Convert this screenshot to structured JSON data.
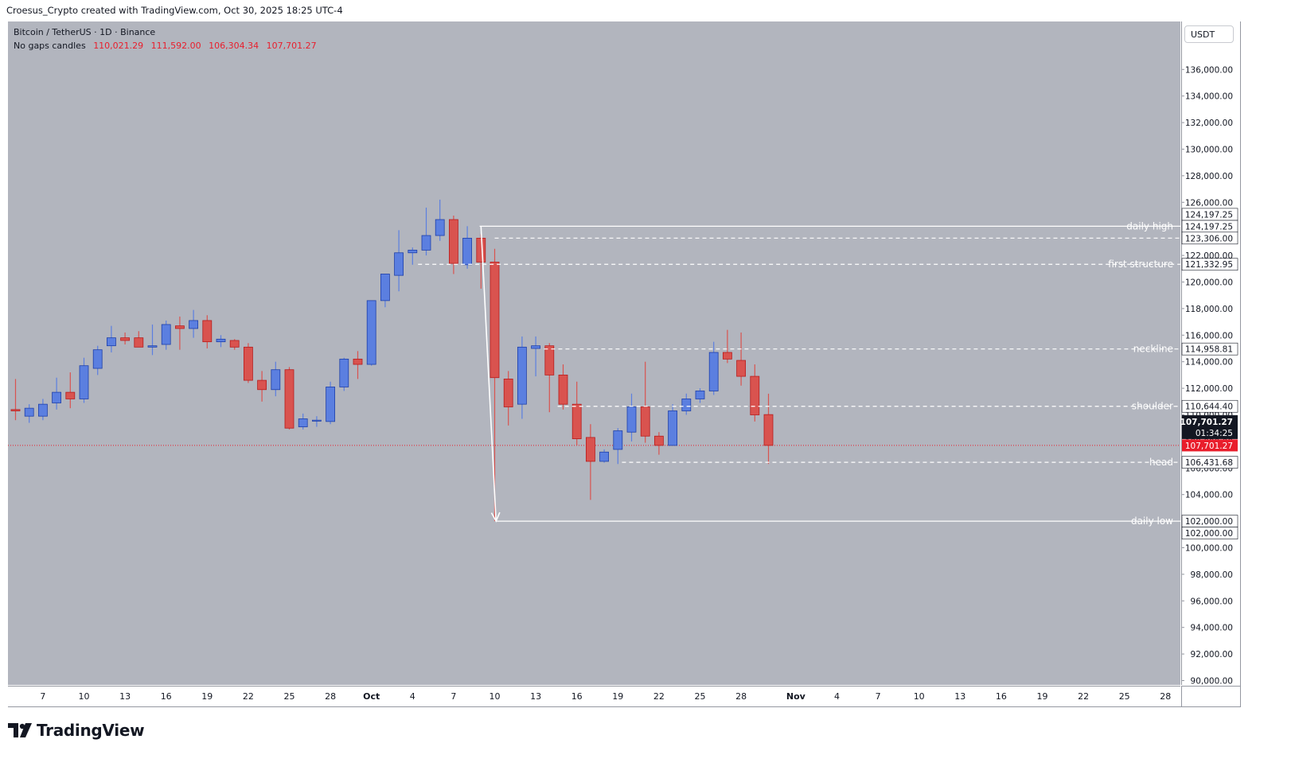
{
  "header": {
    "attribution": "Croesus_Crypto created with TradingView.com, Oct 30, 2025 18:25 UTC-4"
  },
  "legend": {
    "title": "Bitcoin / TetherUS · 1D · Binance",
    "candle_mode": "No gaps candles",
    "open": "110,021.29",
    "high": "111,592.00",
    "low": "106,304.34",
    "close": "107,701.27"
  },
  "price_axis": {
    "currency": "USDT"
  },
  "branding": {
    "logo_text": "TradingView"
  },
  "colors": {
    "up": "#5b7fe0",
    "up_border": "#1e3fa8",
    "down": "#d9534f",
    "down_border": "#b71c1c",
    "background": "#b2b5be"
  },
  "chart_data": {
    "type": "candlestick",
    "title": "",
    "ylim": [
      89000,
      138000
    ],
    "y_ticks": [
      90000,
      92000,
      94000,
      96000,
      98000,
      100000,
      102000,
      104000,
      106000,
      108000,
      110000,
      112000,
      114000,
      116000,
      118000,
      120000,
      122000,
      124000,
      126000,
      128000,
      130000,
      132000,
      134000,
      136000
    ],
    "y_tick_labels": [
      "90,000.00",
      "92,000.00",
      "94,000.00",
      "96,000.00",
      "98,000.00",
      "100,000.00",
      "102,000.00",
      "104,000.00",
      "106,000.00",
      "108,000.00",
      "110,000.00",
      "112,000.00",
      "114,000.00",
      "116,000.00",
      "118,000.00",
      "120,000.00",
      "122,000.00",
      "124,000.00",
      "126,000.00",
      "128,000.00",
      "130,000.00",
      "132,000.00",
      "134,000.00",
      "136,000.00"
    ],
    "x_tick_labels": [
      {
        "day": 2,
        "label": "7"
      },
      {
        "day": 5,
        "label": "10"
      },
      {
        "day": 8,
        "label": "13"
      },
      {
        "day": 11,
        "label": "16"
      },
      {
        "day": 14,
        "label": "19"
      },
      {
        "day": 17,
        "label": "22"
      },
      {
        "day": 20,
        "label": "25"
      },
      {
        "day": 23,
        "label": "28"
      },
      {
        "day": 26,
        "label": "Oct"
      },
      {
        "day": 29,
        "label": "4"
      },
      {
        "day": 32,
        "label": "7"
      },
      {
        "day": 35,
        "label": "10"
      },
      {
        "day": 38,
        "label": "13"
      },
      {
        "day": 41,
        "label": "16"
      },
      {
        "day": 44,
        "label": "19"
      },
      {
        "day": 47,
        "label": "22"
      },
      {
        "day": 50,
        "label": "25"
      },
      {
        "day": 53,
        "label": "28"
      },
      {
        "day": 57,
        "label": "Nov"
      },
      {
        "day": 60,
        "label": "4"
      },
      {
        "day": 63,
        "label": "7"
      },
      {
        "day": 66,
        "label": "10"
      },
      {
        "day": 69,
        "label": "13"
      },
      {
        "day": 72,
        "label": "16"
      },
      {
        "day": 75,
        "label": "19"
      },
      {
        "day": 78,
        "label": "22"
      },
      {
        "day": 81,
        "label": "25"
      },
      {
        "day": 84,
        "label": "28"
      }
    ],
    "candles": [
      {
        "o": 110400,
        "h": 112700,
        "l": 109600,
        "c": 110300
      },
      {
        "o": 109900,
        "h": 110800,
        "l": 109400,
        "c": 110500
      },
      {
        "o": 109900,
        "h": 111200,
        "l": 109600,
        "c": 110800
      },
      {
        "o": 110900,
        "h": 112800,
        "l": 110400,
        "c": 111700
      },
      {
        "o": 111700,
        "h": 113200,
        "l": 110500,
        "c": 111200
      },
      {
        "o": 111200,
        "h": 114300,
        "l": 110900,
        "c": 113700
      },
      {
        "o": 113500,
        "h": 115200,
        "l": 113000,
        "c": 114900
      },
      {
        "o": 115200,
        "h": 116700,
        "l": 114700,
        "c": 115800
      },
      {
        "o": 115800,
        "h": 116200,
        "l": 115300,
        "c": 115600
      },
      {
        "o": 115800,
        "h": 116300,
        "l": 115100,
        "c": 115100
      },
      {
        "o": 115100,
        "h": 116800,
        "l": 114500,
        "c": 115200
      },
      {
        "o": 115300,
        "h": 117100,
        "l": 114900,
        "c": 116800
      },
      {
        "o": 116700,
        "h": 117400,
        "l": 114900,
        "c": 116500
      },
      {
        "o": 116500,
        "h": 117900,
        "l": 115800,
        "c": 117100
      },
      {
        "o": 117100,
        "h": 117500,
        "l": 115000,
        "c": 115500
      },
      {
        "o": 115500,
        "h": 116000,
        "l": 115100,
        "c": 115700
      },
      {
        "o": 115600,
        "h": 115700,
        "l": 114900,
        "c": 115100
      },
      {
        "o": 115100,
        "h": 115400,
        "l": 112400,
        "c": 112600
      },
      {
        "o": 112600,
        "h": 113300,
        "l": 111000,
        "c": 111900
      },
      {
        "o": 111900,
        "h": 114000,
        "l": 111400,
        "c": 113400
      },
      {
        "o": 113400,
        "h": 113600,
        "l": 108900,
        "c": 109000
      },
      {
        "o": 109100,
        "h": 110100,
        "l": 108900,
        "c": 109700
      },
      {
        "o": 109600,
        "h": 109900,
        "l": 109100,
        "c": 109600
      },
      {
        "o": 109500,
        "h": 112500,
        "l": 109300,
        "c": 112100
      },
      {
        "o": 112100,
        "h": 114300,
        "l": 111800,
        "c": 114200
      },
      {
        "o": 114200,
        "h": 114800,
        "l": 112700,
        "c": 113800
      },
      {
        "o": 113800,
        "h": 118600,
        "l": 113700,
        "c": 118600
      },
      {
        "o": 118600,
        "h": 120600,
        "l": 118100,
        "c": 120600
      },
      {
        "o": 120500,
        "h": 123900,
        "l": 119300,
        "c": 122200
      },
      {
        "o": 122200,
        "h": 122600,
        "l": 121300,
        "c": 122400
      },
      {
        "o": 122400,
        "h": 125600,
        "l": 122000,
        "c": 123500
      },
      {
        "o": 123500,
        "h": 126200,
        "l": 123100,
        "c": 124700
      },
      {
        "o": 124700,
        "h": 125000,
        "l": 120600,
        "c": 121400
      },
      {
        "o": 121300,
        "h": 124200,
        "l": 121000,
        "c": 123300
      },
      {
        "o": 123300,
        "h": 123600,
        "l": 119500,
        "c": 121500
      },
      {
        "o": 121500,
        "h": 122500,
        "l": 102000,
        "c": 112800
      },
      {
        "o": 112700,
        "h": 113300,
        "l": 109200,
        "c": 110600
      },
      {
        "o": 110800,
        "h": 115900,
        "l": 109700,
        "c": 115100
      },
      {
        "o": 115000,
        "h": 115900,
        "l": 112900,
        "c": 115200
      },
      {
        "o": 115200,
        "h": 115400,
        "l": 110200,
        "c": 113000
      },
      {
        "o": 113000,
        "h": 113800,
        "l": 110400,
        "c": 110800
      },
      {
        "o": 110800,
        "h": 112500,
        "l": 107700,
        "c": 108200
      },
      {
        "o": 108300,
        "h": 109300,
        "l": 103600,
        "c": 106500
      },
      {
        "o": 106500,
        "h": 107400,
        "l": 106400,
        "c": 107200
      },
      {
        "o": 107400,
        "h": 109000,
        "l": 106300,
        "c": 108800
      },
      {
        "o": 108700,
        "h": 111600,
        "l": 108000,
        "c": 110600
      },
      {
        "o": 110600,
        "h": 114000,
        "l": 107900,
        "c": 108400
      },
      {
        "o": 108400,
        "h": 108700,
        "l": 107000,
        "c": 107700
      },
      {
        "o": 107700,
        "h": 110800,
        "l": 107700,
        "c": 110300
      },
      {
        "o": 110300,
        "h": 111600,
        "l": 110000,
        "c": 111200
      },
      {
        "o": 111200,
        "h": 112000,
        "l": 110900,
        "c": 111800
      },
      {
        "o": 111800,
        "h": 115500,
        "l": 111500,
        "c": 114700
      },
      {
        "o": 114700,
        "h": 116400,
        "l": 113900,
        "c": 114200
      },
      {
        "o": 114100,
        "h": 116200,
        "l": 112200,
        "c": 112900
      },
      {
        "o": 112900,
        "h": 113800,
        "l": 109500,
        "c": 110000
      },
      {
        "o": 110021.29,
        "h": 111592.0,
        "l": 106304.34,
        "c": 107701.27
      }
    ],
    "levels": [
      {
        "name": "daily high",
        "price": 124197.25,
        "label": "124,197.25",
        "style": "solid",
        "text": "daily high"
      },
      {
        "name": "level-123306",
        "price": 123306.0,
        "label": "123,306.00",
        "style": "dashed",
        "text": ""
      },
      {
        "name": "first structure",
        "price": 121332.95,
        "label": "121,332.95",
        "style": "dashed",
        "text": "first structure"
      },
      {
        "name": "neckline",
        "price": 114958.81,
        "label": "114,958.81",
        "style": "dashed",
        "text": "neckline"
      },
      {
        "name": "shoulder",
        "price": 110644.4,
        "label": "110,644.40",
        "style": "dashed",
        "text": "shoulder"
      },
      {
        "name": "head",
        "price": 106431.68,
        "label": "106,431.68",
        "style": "dashed",
        "text": "head"
      },
      {
        "name": "daily low",
        "price": 102000.0,
        "label": "102,000.00",
        "style": "solid",
        "text": "daily low"
      }
    ],
    "extra_tags": [
      {
        "price": 124197.25,
        "label": "124,197.25",
        "offset": -1
      },
      {
        "price": 102000.0,
        "label": "102,000.00",
        "offset": 1
      }
    ],
    "last_price": {
      "price": 107701.27,
      "label": "107,701.27",
      "countdown": "01:34:25"
    },
    "arrow": {
      "from_day": 34,
      "from_price": 124197.25,
      "to_day": 35.1,
      "to_price": 102000.0
    }
  }
}
